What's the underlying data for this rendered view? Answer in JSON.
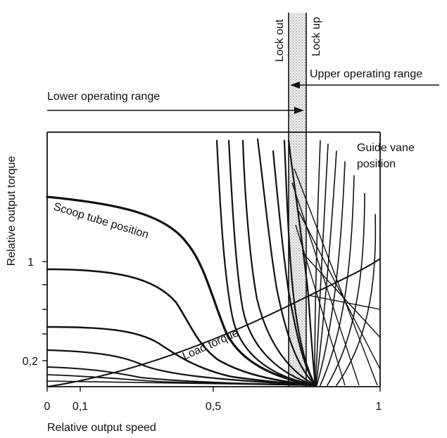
{
  "colors": {
    "ink": "#111111",
    "band_fill": "#d9d9d9",
    "background": "#ffffff"
  },
  "labels": {
    "lock_out": "Lock out",
    "lock_up": "Lock up",
    "upper_operating_range": "Upper operating range",
    "lower_operating_range": "Lower operating range",
    "guide_vane_line1": "Guide vane",
    "guide_vane_line2": "position",
    "scoop_tube_position": "Scoop tube position",
    "load_torque": "Load torque",
    "y_axis": "Relative  output torque",
    "x_axis": "Relative  output speed"
  },
  "ticks": {
    "x": [
      "0",
      "0,1",
      "0,5",
      "1"
    ],
    "y": [
      "1",
      "0,2"
    ]
  }
}
